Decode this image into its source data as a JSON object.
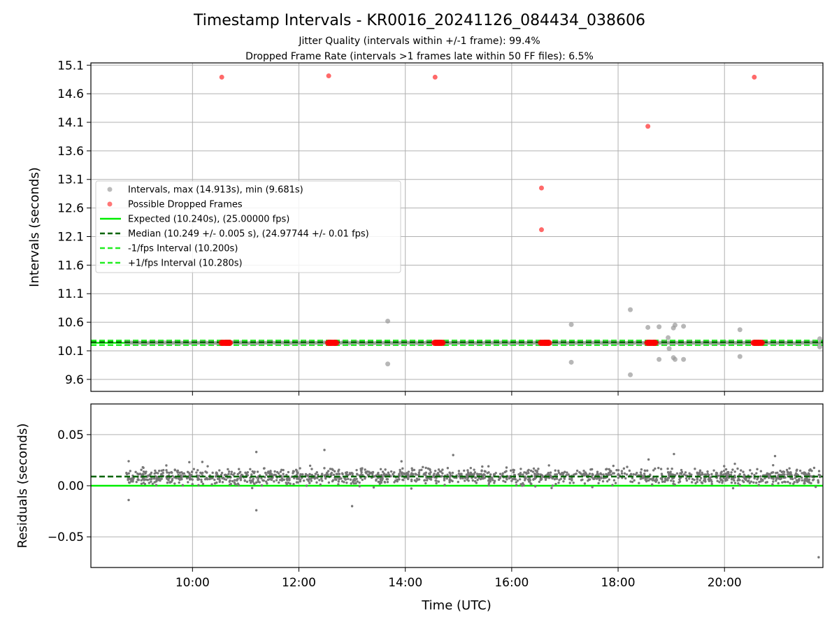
{
  "chart_data": {
    "type": "scatter",
    "title": "Timestamp Intervals - KR0016_20241126_084434_038606",
    "subtitle_lines": [
      "Jitter Quality (intervals within +/-1 frame): 99.4%",
      "Dropped Frame Rate (intervals >1 frames late within 50 FF files): 6.5%"
    ],
    "xlabel": "Time (UTC)",
    "x_tick_labels": [
      "10:00",
      "12:00",
      "14:00",
      "16:00",
      "18:00",
      "20:00"
    ],
    "x_tick_hours": [
      10,
      12,
      14,
      16,
      18,
      20
    ],
    "xlim_hours": [
      8.09,
      21.85
    ],
    "grid": true,
    "colors": {
      "intervals": "#999999",
      "dropped": "#ff2020",
      "expected": "#00ee00",
      "median": "#006400",
      "bounds": "#22ee22",
      "residuals": "#777777"
    },
    "intervals_panel": {
      "ylabel": "Intervals (seconds)",
      "ylim": [
        9.39,
        15.14
      ],
      "y_tick_labels": [
        "9.6",
        "10.1",
        "10.6",
        "11.1",
        "11.6",
        "12.1",
        "12.6",
        "13.1",
        "13.6",
        "14.1",
        "14.6",
        "15.1"
      ],
      "y_ticks": [
        9.6,
        10.1,
        10.6,
        11.1,
        11.6,
        12.1,
        12.6,
        13.1,
        13.6,
        14.1,
        14.6,
        15.1
      ],
      "expected_value": 10.24,
      "median_value": 10.249,
      "minus_value": 10.2,
      "plus_value": 10.28,
      "legend_position": "center-left",
      "legend": [
        {
          "label": "Intervals, max (14.913s), min (9.681s)",
          "kind": "dot",
          "color": "#aaaaaa"
        },
        {
          "label": "Possible Dropped Frames",
          "kind": "dot",
          "color": "#ff5555"
        },
        {
          "label": "Expected (10.240s), (25.00000 fps)",
          "kind": "line",
          "color": "#00ee00"
        },
        {
          "label": "Median (10.249 +/- 0.005 s), (24.97744 +/- 0.01 fps)",
          "kind": "dash",
          "color": "#006400"
        },
        {
          "label": "-1/fps Interval (10.200s)",
          "kind": "dash",
          "color": "#22ee22"
        },
        {
          "label": "+1/fps Interval (10.280s)",
          "kind": "dash",
          "color": "#22ee22"
        }
      ],
      "gray_outliers": [
        {
          "x": 13.67,
          "y": 10.62
        },
        {
          "x": 13.67,
          "y": 9.87
        },
        {
          "x": 17.12,
          "y": 10.56
        },
        {
          "x": 17.12,
          "y": 9.9
        },
        {
          "x": 18.23,
          "y": 10.82
        },
        {
          "x": 18.23,
          "y": 9.681
        },
        {
          "x": 18.56,
          "y": 10.51
        },
        {
          "x": 18.77,
          "y": 10.52
        },
        {
          "x": 18.77,
          "y": 9.95
        },
        {
          "x": 18.94,
          "y": 10.33
        },
        {
          "x": 18.96,
          "y": 10.14
        },
        {
          "x": 19.04,
          "y": 10.5
        },
        {
          "x": 19.07,
          "y": 10.55
        },
        {
          "x": 19.04,
          "y": 9.98
        },
        {
          "x": 19.07,
          "y": 9.95
        },
        {
          "x": 19.23,
          "y": 10.53
        },
        {
          "x": 19.23,
          "y": 9.95
        },
        {
          "x": 20.29,
          "y": 10.47
        },
        {
          "x": 20.29,
          "y": 10.0
        },
        {
          "x": 21.79,
          "y": 10.31
        },
        {
          "x": 21.79,
          "y": 10.17
        }
      ],
      "dropped_high": [
        {
          "x": 10.55,
          "y": 14.89
        },
        {
          "x": 12.56,
          "y": 14.913
        },
        {
          "x": 14.56,
          "y": 14.89
        },
        {
          "x": 16.56,
          "y": 12.95
        },
        {
          "x": 16.56,
          "y": 12.22
        },
        {
          "x": 18.56,
          "y": 14.03
        },
        {
          "x": 20.56,
          "y": 14.89
        }
      ],
      "dropped_clusters": [
        {
          "x_start": 10.55,
          "x_end": 10.7,
          "y": 10.24
        },
        {
          "x_start": 12.55,
          "x_end": 12.7,
          "y": 10.24
        },
        {
          "x_start": 14.55,
          "x_end": 14.7,
          "y": 10.24
        },
        {
          "x_start": 16.55,
          "x_end": 16.7,
          "y": 10.24
        },
        {
          "x_start": 18.55,
          "x_end": 18.7,
          "y": 10.24
        },
        {
          "x_start": 20.55,
          "x_end": 20.7,
          "y": 10.24
        }
      ],
      "data_range_hours": [
        8.75,
        21.8
      ]
    },
    "residuals_panel": {
      "ylabel": "Residuals (seconds)",
      "ylim": [
        -0.08,
        0.08
      ],
      "y_tick_labels": [
        "−0.05",
        "0.00",
        "0.05"
      ],
      "y_ticks": [
        -0.05,
        0.0,
        0.05
      ],
      "expected_value": 0.0,
      "median_value": 0.009,
      "typical_spread": 0.008,
      "max_residual": 0.035,
      "min_residual": -0.07,
      "extremes": [
        {
          "x": 11.2,
          "y": 0.033
        },
        {
          "x": 11.2,
          "y": -0.024
        },
        {
          "x": 12.48,
          "y": 0.035
        },
        {
          "x": 14.9,
          "y": 0.03
        },
        {
          "x": 19.05,
          "y": 0.031
        },
        {
          "x": 20.95,
          "y": 0.029
        },
        {
          "x": 21.77,
          "y": -0.07
        },
        {
          "x": 8.8,
          "y": -0.014
        },
        {
          "x": 8.8,
          "y": 0.024
        },
        {
          "x": 13.0,
          "y": -0.02
        }
      ]
    }
  }
}
